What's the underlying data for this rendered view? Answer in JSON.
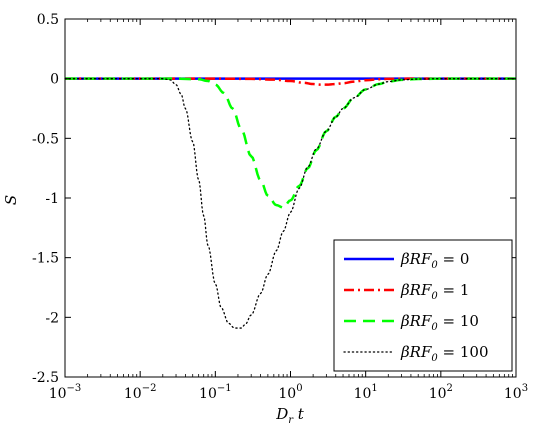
{
  "chart_data": {
    "type": "line",
    "xlabel": "D_r t",
    "ylabel": "S",
    "xscale": "log",
    "xlim": [
      0.001,
      1000
    ],
    "ylim": [
      -2.5,
      0.5
    ],
    "yticks": [
      0.5,
      0,
      -0.5,
      -1,
      -1.5,
      -2,
      -2.5
    ],
    "ytick_labels": [
      "0.5",
      "0",
      "-0.5",
      "-1",
      "-1.5",
      "-2",
      "-2.5"
    ],
    "xticks": [
      0.001,
      0.01,
      0.1,
      1,
      10,
      100,
      1000
    ],
    "xtick_labels": [
      {
        "base": "10",
        "exp": "−3"
      },
      {
        "base": "10",
        "exp": "−2"
      },
      {
        "base": "10",
        "exp": "−1"
      },
      {
        "base": "10",
        "exp": "0"
      },
      {
        "base": "10",
        "exp": "1"
      },
      {
        "base": "10",
        "exp": "2"
      },
      {
        "base": "10",
        "exp": "3"
      }
    ],
    "grid": false,
    "legend_position": "lower-right",
    "series": [
      {
        "name": "βRF₀ = 0",
        "legend": {
          "pre": "β",
          "RF": "RF",
          "sub": "0",
          "post": " = 0"
        },
        "color": "#0000ff",
        "style": "solid",
        "x": [
          0.001,
          1000
        ],
        "y": [
          0,
          0
        ]
      },
      {
        "name": "βRF₀ = 1",
        "legend": {
          "pre": "β",
          "RF": "RF",
          "sub": "0",
          "post": " = 1"
        },
        "color": "#ff0000",
        "style": "dashdot",
        "x": [
          0.001,
          0.1,
          0.3,
          0.6,
          1,
          1.5,
          2,
          2.5,
          3,
          4,
          5,
          7,
          10,
          15,
          20,
          40,
          100,
          1000
        ],
        "y": [
          0,
          0,
          -0.002,
          -0.008,
          -0.02,
          -0.035,
          -0.045,
          -0.05,
          -0.05,
          -0.045,
          -0.038,
          -0.025,
          -0.013,
          -0.005,
          -0.002,
          0,
          0,
          0
        ]
      },
      {
        "name": "βRF₀ = 10",
        "legend": {
          "pre": "β",
          "RF": "RF",
          "sub": "0",
          "post": " = 10"
        },
        "color": "#00ff00",
        "style": "dashed",
        "x": [
          0.001,
          0.03,
          0.06,
          0.08,
          0.1,
          0.13,
          0.17,
          0.22,
          0.3,
          0.4,
          0.5,
          0.65,
          0.8,
          1,
          1.3,
          1.7,
          2.2,
          3,
          4,
          5,
          7,
          10,
          15,
          20,
          30,
          50,
          100,
          1000
        ],
        "y": [
          0,
          0,
          -0.005,
          -0.02,
          -0.05,
          -0.12,
          -0.25,
          -0.42,
          -0.65,
          -0.85,
          -0.98,
          -1.06,
          -1.08,
          -1.02,
          -0.9,
          -0.75,
          -0.6,
          -0.44,
          -0.32,
          -0.25,
          -0.16,
          -0.09,
          -0.045,
          -0.025,
          -0.01,
          -0.003,
          0,
          0
        ]
      },
      {
        "name": "βRF₀ = 100",
        "legend": {
          "pre": "β",
          "RF": "RF",
          "sub": "0",
          "post": " = 100"
        },
        "color": "#000000",
        "style": "dotted",
        "x": [
          0.001,
          0.02,
          0.025,
          0.03,
          0.035,
          0.04,
          0.05,
          0.06,
          0.07,
          0.08,
          0.1,
          0.12,
          0.15,
          0.18,
          0.22,
          0.25,
          0.3,
          0.4,
          0.5,
          0.65,
          0.8,
          1,
          1.3,
          1.7,
          2.2,
          3,
          4,
          5,
          7,
          10,
          15,
          20,
          30,
          50,
          100,
          1000
        ],
        "y": [
          0,
          0,
          -0.01,
          -0.05,
          -0.13,
          -0.25,
          -0.53,
          -0.85,
          -1.15,
          -1.4,
          -1.72,
          -1.92,
          -2.05,
          -2.09,
          -2.09,
          -2.06,
          -1.98,
          -1.8,
          -1.64,
          -1.44,
          -1.28,
          -1.12,
          -0.92,
          -0.74,
          -0.59,
          -0.44,
          -0.32,
          -0.25,
          -0.16,
          -0.09,
          -0.045,
          -0.025,
          -0.01,
          -0.003,
          0,
          0
        ]
      }
    ]
  }
}
